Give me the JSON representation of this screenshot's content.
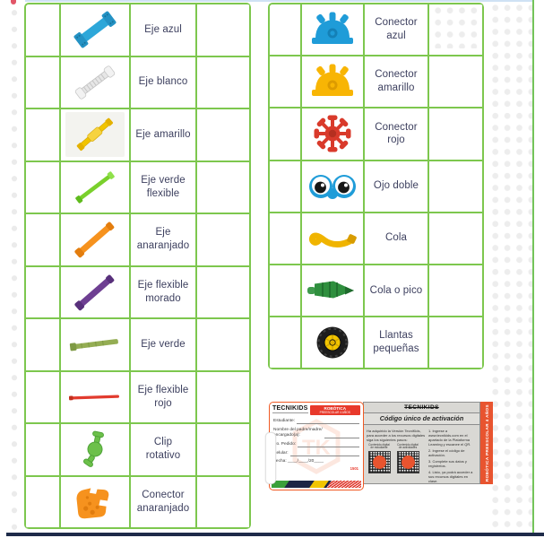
{
  "colors": {
    "table_border": "#7dc74e",
    "text": "#3c3f5e",
    "card_orange": "#f15a24",
    "card_red": "#e8392b",
    "navy": "#1d2a4a"
  },
  "left_table": {
    "rows": [
      {
        "icon": "blue-axle-icon",
        "label": "Eje azul"
      },
      {
        "icon": "white-axle-icon",
        "label": "Eje blanco"
      },
      {
        "icon": "yellow-axle-icon",
        "label": "Eje amarillo"
      },
      {
        "icon": "green-flexible-axle-icon",
        "label": "Eje verde\nflexible"
      },
      {
        "icon": "orange-axle-icon",
        "label": "Eje\nanaranjado"
      },
      {
        "icon": "purple-flexible-axle-icon",
        "label": "Eje flexible\nmorado"
      },
      {
        "icon": "green-axle-icon",
        "label": "Eje verde"
      },
      {
        "icon": "red-flexible-axle-icon",
        "label": "Eje flexible\nrojo"
      },
      {
        "icon": "rotating-clip-icon",
        "label": "Clip\nrotativo"
      },
      {
        "icon": "orange-connector-icon",
        "label": "Conector\nanaranjado"
      }
    ]
  },
  "right_table": {
    "rows": [
      {
        "icon": "blue-connector-icon",
        "label": "Conector\nazul"
      },
      {
        "icon": "yellow-connector-icon",
        "label": "Conector\namarillo"
      },
      {
        "icon": "red-connector-icon",
        "label": "Conector\nrojo"
      },
      {
        "icon": "double-eye-icon",
        "label": "Ojo doble"
      },
      {
        "icon": "tail-icon",
        "label": "Cola"
      },
      {
        "icon": "tail-or-beak-icon",
        "label": "Cola o pico"
      },
      {
        "icon": "small-wheels-icon",
        "label": "Llantas\npequeñas"
      }
    ]
  },
  "card": {
    "brand": "TECNIKIDS",
    "program": "ROBÓTICA",
    "program_sub": "PREESCOLAR 4 AÑOS",
    "fields": {
      "estudiante": "Estudiante:",
      "nombre": "Nombre del padre/madre/\nencargado(a):",
      "pedido": "No. Pedido:",
      "celular": "Celular:",
      "fecha": "Fecha: ____/____/20____"
    },
    "form_code": "1501",
    "watermark": "TK",
    "activation": {
      "brand": "TECNIKIDS",
      "title": "Código único de activación",
      "intro": "Ha adquirido la Versión TecniKids, para acceder a los recursos digitales siga los siguientes pasos:",
      "qr1_label": "Contenido digital\nde estudiante",
      "qr2_label": "Contenido digital\nde actividades",
      "steps": [
        "1. Ingrese a www.tecnikids.com en el apartado de la Plataforma Learning y escanee el QR.",
        "2. Ingrese el código de activación.",
        "3. Complete sus datos y regístrelos.",
        "4. Listo, ya podrá acceder a sus recursos digitales en clase."
      ],
      "side_label": "ROBÓTICA PREESCOLAR 4 AÑOS"
    }
  }
}
